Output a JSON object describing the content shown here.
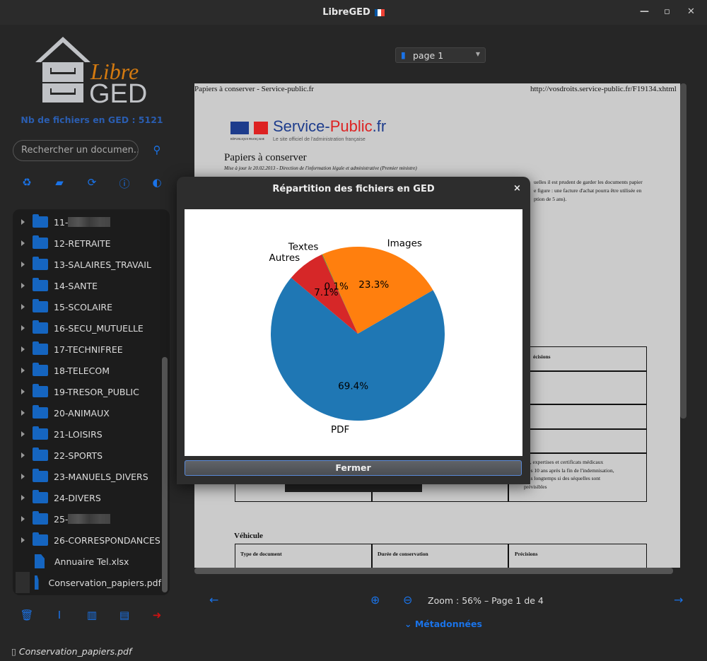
{
  "window": {
    "title": "LibreGED",
    "flag_colors": [
      "#0055a4",
      "#ffffff",
      "#ef4135"
    ]
  },
  "sidebar": {
    "logo_text_top": "Libre",
    "logo_text_bottom": "GED",
    "file_count": "Nb de fichiers en GED : 5121",
    "search_placeholder": "Rechercher un documen...",
    "toolbar_icons": [
      "recycle-icon",
      "folder-plus-icon",
      "refresh-icon",
      "info-icon",
      "contrast-icon"
    ],
    "tree": [
      {
        "label": "11-",
        "type": "folder",
        "redacted": true
      },
      {
        "label": "12-RETRAITE",
        "type": "folder"
      },
      {
        "label": "13-SALAIRES_TRAVAIL",
        "type": "folder"
      },
      {
        "label": "14-SANTE",
        "type": "folder"
      },
      {
        "label": "15-SCOLAIRE",
        "type": "folder"
      },
      {
        "label": "16-SECU_MUTUELLE",
        "type": "folder"
      },
      {
        "label": "17-TECHNIFREE",
        "type": "folder"
      },
      {
        "label": "18-TELECOM",
        "type": "folder"
      },
      {
        "label": "19-TRESOR_PUBLIC",
        "type": "folder"
      },
      {
        "label": "20-ANIMAUX",
        "type": "folder"
      },
      {
        "label": "21-LOISIRS",
        "type": "folder"
      },
      {
        "label": "22-SPORTS",
        "type": "folder"
      },
      {
        "label": "23-MANUELS_DIVERS",
        "type": "folder"
      },
      {
        "label": "24-DIVERS",
        "type": "folder"
      },
      {
        "label": "25-",
        "type": "folder",
        "redacted": true
      },
      {
        "label": "26-CORRESPONDANCES",
        "type": "folder"
      },
      {
        "label": "Annuaire Tel.xlsx",
        "type": "file"
      },
      {
        "label": "Conservation_papiers.pdf",
        "type": "pdf",
        "selected": true
      }
    ],
    "bottom_icons": [
      "trash-icon",
      "text-cursor-icon",
      "chart-icon",
      "archive-icon",
      "logout-icon"
    ],
    "logout_color": "#cc1111",
    "accent": "#1a73e8"
  },
  "status": {
    "filename": "Conservation_papiers.pdf"
  },
  "viewer": {
    "page_select": "page 1",
    "doc": {
      "header_left": "Papiers à conserver - Service-public.fr",
      "header_right": "http://vosdroits.service-public.fr/F19134.xhtml",
      "brand_a": "Service-",
      "brand_b": "Public",
      "brand_c": ".fr",
      "brand_sub": "Le site officiel de l'administration française",
      "rf": "République Française",
      "title": "Papiers à conserver",
      "updated": "Mise à jour le 20.02.2013 - Direction de l'information légale et administrative (Premier ministre)",
      "intro": [
        "uelles il est prudent de garder les documents papier",
        "e figure : une facture d'achat pourra être utilisée en",
        "ption de 5 ans)."
      ],
      "col3_header": "écisions",
      "note": [
        "res, expertises et certificats médicaux",
        "rvés 10 ans après la fin de l'indemnisation,",
        "plus longtemps si des séquelles sont",
        "prévisibles"
      ],
      "section": "Véhicule",
      "columns": [
        "Type de document",
        "Durée de conservation",
        "Précisions"
      ]
    },
    "zoom_text": "Zoom : 56% – Page 1 de 4",
    "metadata_label": "Métadonnées"
  },
  "dialog": {
    "title": "Répartition des fichiers en GED",
    "close": "×",
    "button": "Fermer"
  },
  "chart_data": {
    "type": "pie",
    "labels": [
      "PDF",
      "Images",
      "Textes",
      "Autres"
    ],
    "values": [
      69.4,
      23.3,
      0.1,
      7.1
    ],
    "pct_labels": [
      "69.4%",
      "23.3%",
      "0.1%",
      "7.1%"
    ],
    "colors": [
      "#1f77b4",
      "#ff7f0e",
      "#2ca02c",
      "#d62728"
    ],
    "startangle": 140,
    "direction": "counterclockwise"
  }
}
